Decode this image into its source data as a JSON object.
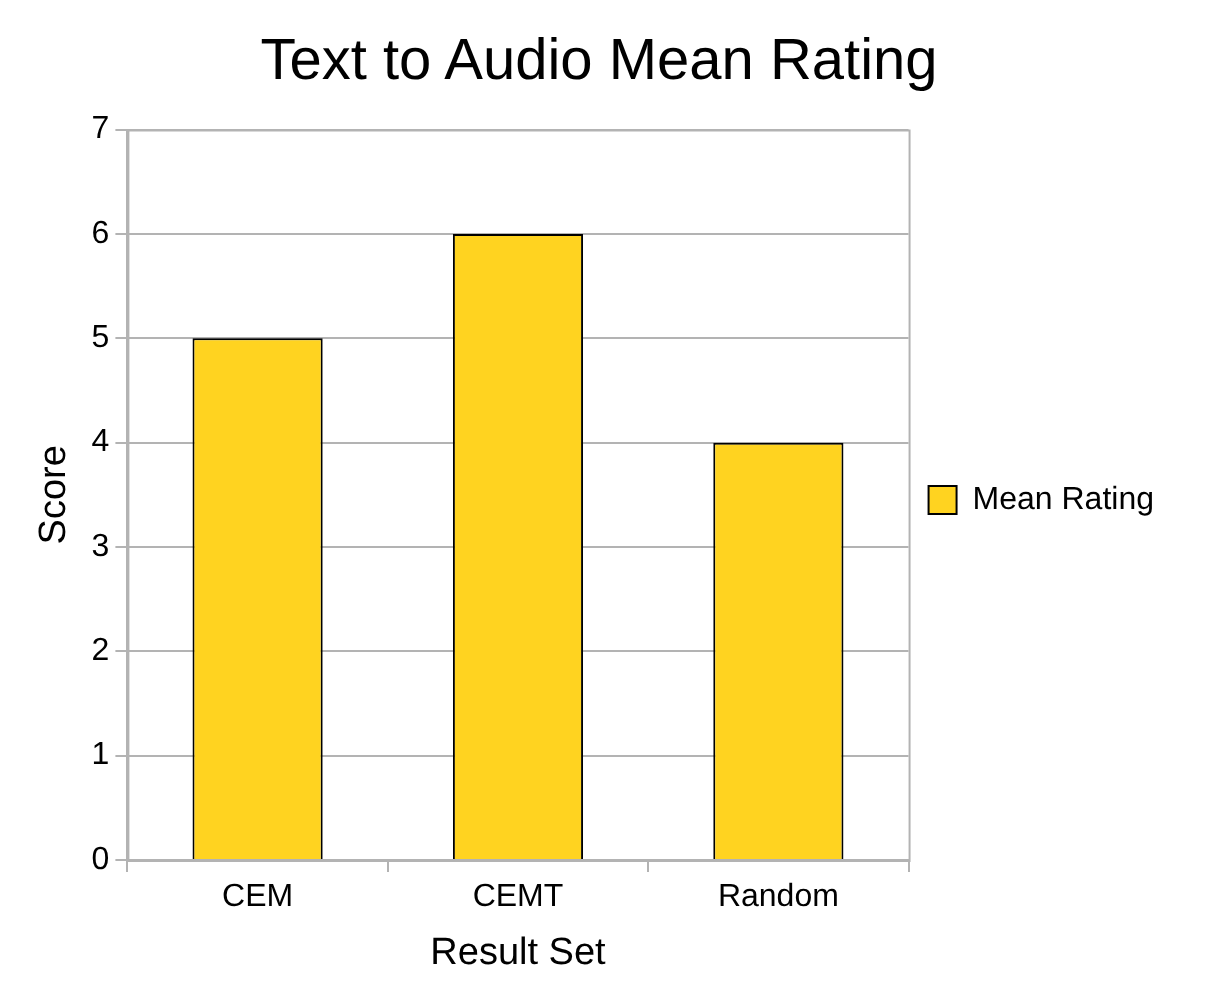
{
  "chart_data": {
    "type": "bar",
    "title": "Text to Audio Mean Rating",
    "xlabel": "Result Set",
    "ylabel": "Score",
    "categories": [
      "CEM",
      "CEMT",
      "Random"
    ],
    "series": [
      {
        "name": "Mean Rating",
        "color": "#ffd320",
        "values": [
          5,
          6,
          4
        ]
      }
    ],
    "ylim": [
      0,
      7
    ],
    "yticks": [
      0,
      1,
      2,
      3,
      4,
      5,
      6,
      7
    ],
    "grid": "y",
    "legend": "right"
  }
}
